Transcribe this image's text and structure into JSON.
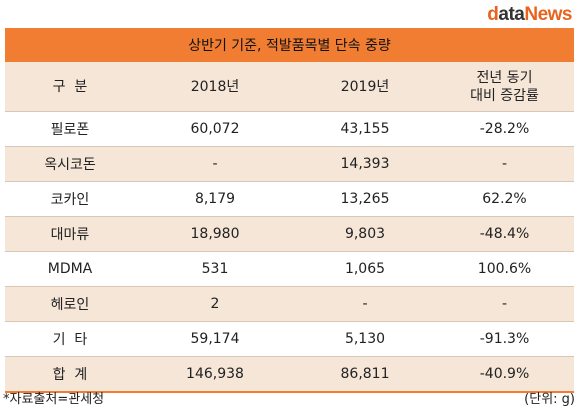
{
  "logo": {
    "d": "d",
    "ata": "ata",
    "news": "News"
  },
  "title": "상반기 기준, 적발품목별 단속 중량",
  "headers": [
    "구  분",
    "2018년",
    "2019년",
    "전년 동기\n대비 증감률"
  ],
  "rows": [
    [
      "필로폰",
      "60,072",
      "43,155",
      "-28.2%"
    ],
    [
      "옥시코돈",
      "-",
      "14,393",
      "-"
    ],
    [
      "코카인",
      "8,179",
      "13,265",
      "62.2%"
    ],
    [
      "대마류",
      "18,980",
      "9,803",
      "-48.4%"
    ],
    [
      "MDMA",
      "531",
      "1,065",
      "100.6%"
    ],
    [
      "헤로인",
      "2",
      "-",
      "-"
    ],
    [
      "기  타",
      "59,174",
      "5,130",
      "-91.3%"
    ]
  ],
  "total": [
    "합  계",
    "146,938",
    "86,811",
    "-40.9%"
  ],
  "footer": {
    "source": "*자료출처=관세청",
    "unit": "(단위: g)"
  },
  "colors": {
    "accent": "#f07d32",
    "band": "#f6e6d8"
  }
}
